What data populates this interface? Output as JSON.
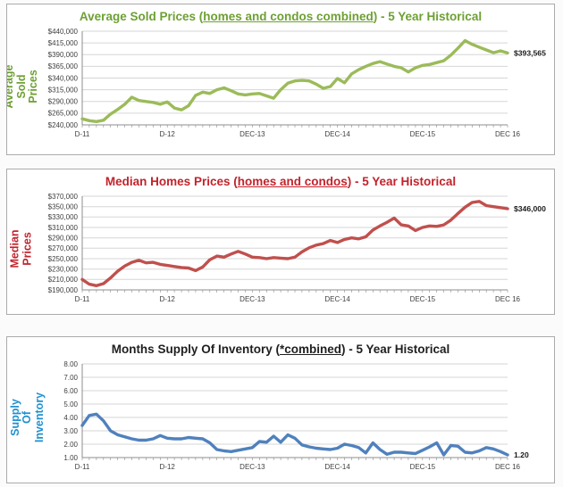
{
  "chart_data": [
    {
      "type": "line",
      "title": "Average Sold Prices (homes and condos combined) - 5 Year Historical",
      "title_parts": {
        "before": "Average Sold Prices (",
        "underlined": "homes and condos combined",
        "after": ") - 5 Year Historical"
      },
      "title_color": "#6da033",
      "ylabel": "Average Sold Prices",
      "ylabel_color": "#6da033",
      "line_color": "#9bbb59",
      "end_label": "$393,565",
      "legend": "none",
      "grid": "horizontal",
      "ylim": [
        240000,
        440000
      ],
      "y_ticks": [
        "$440,000",
        "$415,000",
        "$390,000",
        "$365,000",
        "$340,000",
        "$315,000",
        "$290,000",
        "$265,000",
        "$240,000"
      ],
      "y_tick_values": [
        440000,
        415000,
        390000,
        365000,
        340000,
        315000,
        290000,
        265000,
        240000
      ],
      "x_tick_labels": [
        "D-11",
        "D-12",
        "DEC-13",
        "DEC-14",
        "DEC-15",
        "DEC 16"
      ],
      "x_label_indices": [
        0,
        12,
        24,
        36,
        48,
        60
      ],
      "x_unit": "month",
      "values": [
        253000,
        249000,
        247000,
        250000,
        263000,
        273000,
        284000,
        299000,
        292000,
        290000,
        288000,
        284000,
        289000,
        276000,
        272000,
        281000,
        303000,
        310000,
        307000,
        315000,
        319000,
        313000,
        306000,
        304000,
        306000,
        307000,
        302000,
        297000,
        315000,
        329000,
        334000,
        335000,
        334000,
        327000,
        318000,
        322000,
        339000,
        330000,
        349000,
        358000,
        365000,
        371000,
        375000,
        370000,
        365000,
        362000,
        353000,
        362000,
        367000,
        369000,
        373000,
        377000,
        389000,
        404000,
        420000,
        412000,
        406000,
        400000,
        394000,
        398000,
        393565
      ]
    },
    {
      "type": "line",
      "title": "Median Homes Prices (homes and condos) - 5 Year Historical",
      "title_parts": {
        "before": "Median Homes Prices (",
        "underlined": "homes and condos",
        "after": ") - 5 Year Historical"
      },
      "title_color": "#c2232c",
      "ylabel": "Median Prices",
      "ylabel_color": "#c2232c",
      "line_color": "#c0504d",
      "end_label": "$346,000",
      "legend": "none",
      "grid": "horizontal",
      "ylim": [
        190000,
        370000
      ],
      "y_ticks": [
        "$370,000",
        "$350,000",
        "$330,000",
        "$310,000",
        "$290,000",
        "$270,000",
        "$250,000",
        "$230,000",
        "$210,000",
        "$190,000"
      ],
      "y_tick_values": [
        370000,
        350000,
        330000,
        310000,
        290000,
        270000,
        250000,
        230000,
        210000,
        190000
      ],
      "x_tick_labels": [
        "D-11",
        "D-12",
        "DEC-13",
        "DEC-14",
        "DEC-15",
        "DEC 16"
      ],
      "x_label_indices": [
        0,
        12,
        24,
        36,
        48,
        60
      ],
      "x_unit": "month",
      "values": [
        210000,
        201000,
        198000,
        202000,
        213000,
        226000,
        236000,
        243000,
        247000,
        242000,
        243000,
        239000,
        237000,
        235000,
        233000,
        232000,
        227000,
        234000,
        248000,
        255000,
        253000,
        259000,
        264000,
        259000,
        253000,
        252000,
        250000,
        252000,
        251000,
        250000,
        253000,
        263000,
        271000,
        276000,
        279000,
        285000,
        281000,
        287000,
        290000,
        288000,
        292000,
        305000,
        313000,
        320000,
        328000,
        315000,
        313000,
        304000,
        310000,
        313000,
        312000,
        315000,
        324000,
        337000,
        349000,
        358000,
        360000,
        352000,
        350000,
        348000,
        346000
      ]
    },
    {
      "type": "line",
      "title": "Months Supply Of Inventory (*combined) - 5 Year Historical",
      "title_parts": {
        "before": "Months Supply Of Inventory (",
        "underlined": "*combined",
        "after": ") - 5 Year Historical"
      },
      "title_color": "#1f1f1f",
      "ylabel": "Months Supply Of\nInventory",
      "ylabel_color": "#2191d0",
      "line_color": "#4f81bd",
      "end_label": "1.20",
      "legend": "none",
      "grid": "horizontal",
      "ylim": [
        1.0,
        8.0
      ],
      "y_ticks": [
        "8.00",
        "7.00",
        "6.00",
        "5.00",
        "4.00",
        "3.00",
        "2.00",
        "1.00"
      ],
      "y_tick_values": [
        8,
        7,
        6,
        5,
        4,
        3,
        2,
        1
      ],
      "x_tick_labels": [
        "D-11",
        "D-12",
        "DEC-13",
        "DEC-14",
        "DEC-15",
        "DEC 16"
      ],
      "x_label_indices": [
        0,
        12,
        24,
        36,
        48,
        60
      ],
      "x_unit": "month",
      "values": [
        3.4,
        4.15,
        4.25,
        3.75,
        3.0,
        2.7,
        2.55,
        2.4,
        2.3,
        2.3,
        2.4,
        2.65,
        2.45,
        2.4,
        2.4,
        2.5,
        2.45,
        2.4,
        2.1,
        1.6,
        1.5,
        1.45,
        1.55,
        1.65,
        1.75,
        2.2,
        2.15,
        2.6,
        2.15,
        2.7,
        2.45,
        1.95,
        1.8,
        1.7,
        1.65,
        1.6,
        1.7,
        2.0,
        1.9,
        1.75,
        1.35,
        2.1,
        1.6,
        1.25,
        1.4,
        1.4,
        1.35,
        1.3,
        1.55,
        1.8,
        2.1,
        1.2,
        1.9,
        1.85,
        1.4,
        1.35,
        1.5,
        1.75,
        1.65,
        1.45,
        1.2
      ]
    }
  ]
}
